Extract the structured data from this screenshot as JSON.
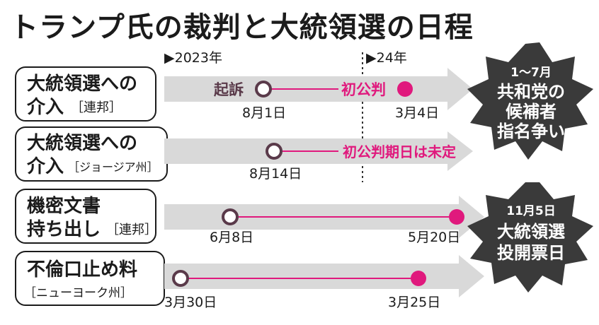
{
  "title": "トランプ氏の裁判と大統領選の日程",
  "axis": {
    "start_label": "▶2023年",
    "mid_label": "▶24年"
  },
  "colors": {
    "accent": "#e0197d",
    "marker_dark": "#5a3a4a",
    "arrow": "#d9d9d9",
    "burst": "#3a3a3a"
  },
  "cases": [
    {
      "line1": "大統領選への",
      "line2": "介入",
      "sub": "［連邦］",
      "start": {
        "event": "起訴",
        "date": "8月1日"
      },
      "end": {
        "event": "初公判",
        "date": "3月4日"
      }
    },
    {
      "line1": "大統領選への",
      "line2": "介入",
      "sub": "［ジョージア州］",
      "start": {
        "date": "8月14日"
      },
      "note": "初公判期日は未定"
    },
    {
      "line1": "機密文書",
      "line2": "持ち出し",
      "sub": "［連邦］",
      "start": {
        "date": "6月8日"
      },
      "end": {
        "date": "5月20日"
      }
    },
    {
      "line1": "不倫口止め料",
      "line2": "",
      "sub": "［ニューヨーク州］",
      "start": {
        "date": "3月30日"
      },
      "end": {
        "date": "3月25日"
      }
    }
  ],
  "bursts": [
    {
      "lines": [
        "1〜7月",
        "共和党の",
        "候補者",
        "指名争い"
      ]
    },
    {
      "lines": [
        "11月5日",
        "大統領選",
        "投開票日"
      ]
    }
  ]
}
